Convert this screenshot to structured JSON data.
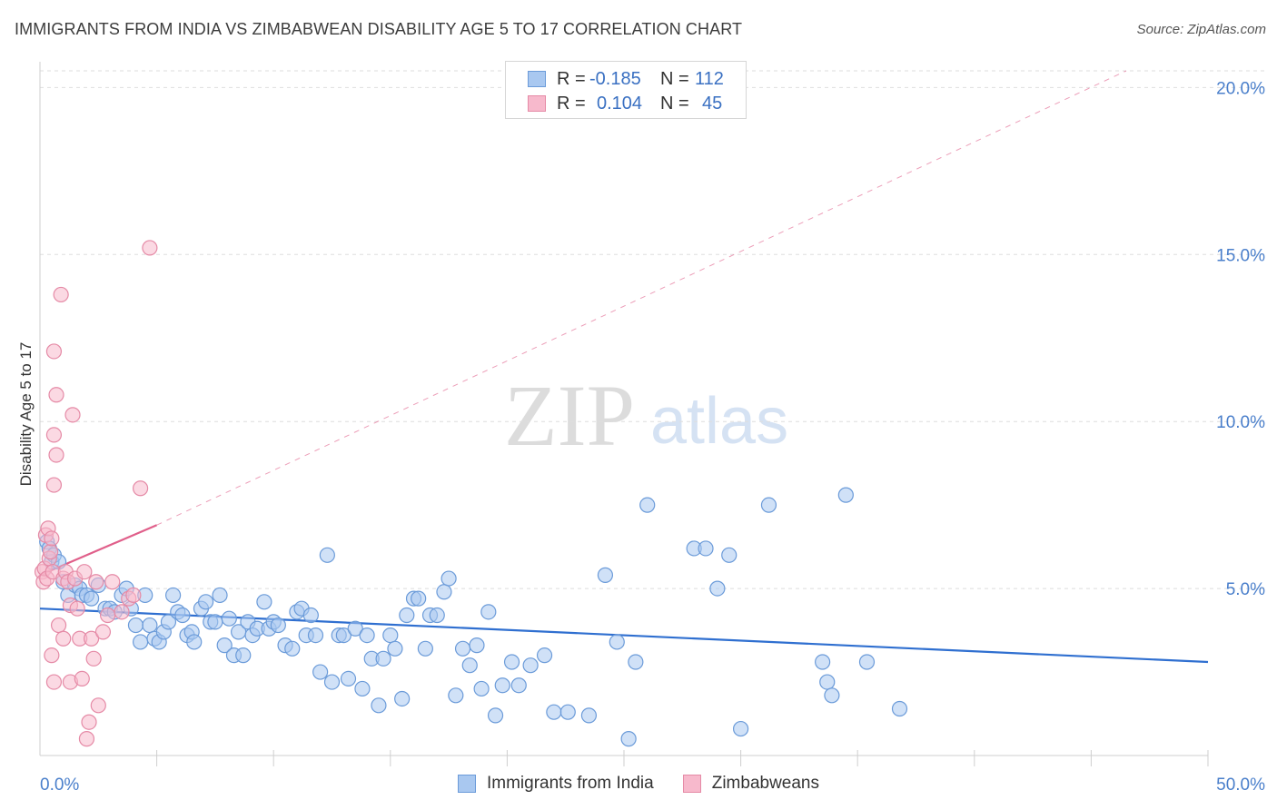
{
  "header": {
    "title": "IMMIGRANTS FROM INDIA VS ZIMBABWEAN DISABILITY AGE 5 TO 17 CORRELATION CHART",
    "source_label": "Source:",
    "source_value": "ZipAtlas.com"
  },
  "watermark": {
    "zip": "ZIP",
    "atlas": "atlas"
  },
  "legend": {
    "r_label": "R =",
    "n_label": "N =",
    "series": [
      {
        "name": "Immigrants from India",
        "r": "-0.185",
        "n": "112",
        "fill": "#a9c8f0",
        "stroke": "#6b9bd9"
      },
      {
        "name": "Zimbabweans",
        "r": "0.104",
        "n": "45",
        "fill": "#f7b9cc",
        "stroke": "#e58aa6"
      }
    ]
  },
  "chart_data": {
    "type": "scatter",
    "title": "IMMIGRANTS FROM INDIA VS ZIMBABWEAN DISABILITY AGE 5 TO 17 CORRELATION CHART",
    "xlabel": "",
    "ylabel": "Disability Age 5 to 17",
    "xlim": [
      0,
      50
    ],
    "ylim": [
      0,
      20.5
    ],
    "x_tick_labels": [
      "0.0%",
      "50.0%"
    ],
    "y_ticks": [
      {
        "value": 5,
        "label": "5.0%"
      },
      {
        "value": 10,
        "label": "10.0%"
      },
      {
        "value": 15,
        "label": "15.0%"
      },
      {
        "value": 20,
        "label": "20.0%"
      }
    ],
    "x_minor_ticks": [
      0,
      5,
      10,
      15,
      20,
      25,
      30,
      35,
      40,
      45,
      50
    ],
    "grid": "dashed horizontal",
    "series": [
      {
        "name": "Immigrants from India",
        "color": "#6b9bd9",
        "fill": "#a9c8f0",
        "trend": {
          "x0": 0,
          "y0": 4.4,
          "x1": 50,
          "y1": 2.8,
          "style": "solid",
          "color": "#2f6fd0"
        },
        "points": [
          [
            0.3,
            6.4
          ],
          [
            0.4,
            6.2
          ],
          [
            0.5,
            5.8
          ],
          [
            0.6,
            6.0
          ],
          [
            0.8,
            5.8
          ],
          [
            1.0,
            5.2
          ],
          [
            1.2,
            4.8
          ],
          [
            1.5,
            5.1
          ],
          [
            1.7,
            5.0
          ],
          [
            1.8,
            4.8
          ],
          [
            2.0,
            4.8
          ],
          [
            2.2,
            4.7
          ],
          [
            2.5,
            5.1
          ],
          [
            2.8,
            4.4
          ],
          [
            3.0,
            4.4
          ],
          [
            3.2,
            4.3
          ],
          [
            3.5,
            4.8
          ],
          [
            3.7,
            5.0
          ],
          [
            3.9,
            4.4
          ],
          [
            4.1,
            3.9
          ],
          [
            4.3,
            3.4
          ],
          [
            4.5,
            4.8
          ],
          [
            4.7,
            3.9
          ],
          [
            4.9,
            3.5
          ],
          [
            5.1,
            3.4
          ],
          [
            5.3,
            3.7
          ],
          [
            5.5,
            4.0
          ],
          [
            5.7,
            4.8
          ],
          [
            5.9,
            4.3
          ],
          [
            6.1,
            4.2
          ],
          [
            6.3,
            3.6
          ],
          [
            6.5,
            3.7
          ],
          [
            6.6,
            3.4
          ],
          [
            6.9,
            4.4
          ],
          [
            7.1,
            4.6
          ],
          [
            7.3,
            4.0
          ],
          [
            7.5,
            4.0
          ],
          [
            7.7,
            4.8
          ],
          [
            7.9,
            3.3
          ],
          [
            8.1,
            4.1
          ],
          [
            8.3,
            3.0
          ],
          [
            8.5,
            3.7
          ],
          [
            8.7,
            3.0
          ],
          [
            8.9,
            4.0
          ],
          [
            9.1,
            3.6
          ],
          [
            9.3,
            3.8
          ],
          [
            9.6,
            4.6
          ],
          [
            9.8,
            3.8
          ],
          [
            10.0,
            4.0
          ],
          [
            10.2,
            3.9
          ],
          [
            10.5,
            3.3
          ],
          [
            10.8,
            3.2
          ],
          [
            11.0,
            4.3
          ],
          [
            11.2,
            4.4
          ],
          [
            11.4,
            3.6
          ],
          [
            11.6,
            4.2
          ],
          [
            11.8,
            3.6
          ],
          [
            12.0,
            2.5
          ],
          [
            12.3,
            6.0
          ],
          [
            12.5,
            2.2
          ],
          [
            12.8,
            3.6
          ],
          [
            13.0,
            3.6
          ],
          [
            13.2,
            2.3
          ],
          [
            13.5,
            3.8
          ],
          [
            13.8,
            2.0
          ],
          [
            14.0,
            3.6
          ],
          [
            14.2,
            2.9
          ],
          [
            14.5,
            1.5
          ],
          [
            14.7,
            2.9
          ],
          [
            15.0,
            3.6
          ],
          [
            15.2,
            3.2
          ],
          [
            15.5,
            1.7
          ],
          [
            15.7,
            4.2
          ],
          [
            16.0,
            4.7
          ],
          [
            16.2,
            4.7
          ],
          [
            16.5,
            3.2
          ],
          [
            16.7,
            4.2
          ],
          [
            17.0,
            4.2
          ],
          [
            17.3,
            4.9
          ],
          [
            17.5,
            5.3
          ],
          [
            17.8,
            1.8
          ],
          [
            18.1,
            3.2
          ],
          [
            18.4,
            2.7
          ],
          [
            18.7,
            3.3
          ],
          [
            18.9,
            2.0
          ],
          [
            19.2,
            4.3
          ],
          [
            19.5,
            1.2
          ],
          [
            19.8,
            2.1
          ],
          [
            20.2,
            2.8
          ],
          [
            20.5,
            2.1
          ],
          [
            21.0,
            2.7
          ],
          [
            21.6,
            3.0
          ],
          [
            22.0,
            1.3
          ],
          [
            22.6,
            1.3
          ],
          [
            23.5,
            1.2
          ],
          [
            24.2,
            5.4
          ],
          [
            24.7,
            3.4
          ],
          [
            25.2,
            0.5
          ],
          [
            25.5,
            2.8
          ],
          [
            26.0,
            7.5
          ],
          [
            28.0,
            6.2
          ],
          [
            28.5,
            6.2
          ],
          [
            29.0,
            5.0
          ],
          [
            29.5,
            6.0
          ],
          [
            30.0,
            0.8
          ],
          [
            31.2,
            7.5
          ],
          [
            33.5,
            2.8
          ],
          [
            33.7,
            2.2
          ],
          [
            33.9,
            1.8
          ],
          [
            34.5,
            7.8
          ],
          [
            35.4,
            2.8
          ],
          [
            36.8,
            1.4
          ]
        ]
      },
      {
        "name": "Zimbabweans",
        "color": "#e58aa6",
        "fill": "#f7b9cc",
        "trend": {
          "x0": 0,
          "y0": 5.4,
          "x1": 5,
          "y1": 6.9,
          "style": "solid",
          "color": "#e05f8a",
          "extended": {
            "x1": 46.5,
            "y1": 20.5,
            "style": "dashed"
          }
        },
        "points": [
          [
            0.1,
            5.5
          ],
          [
            0.15,
            5.2
          ],
          [
            0.2,
            5.6
          ],
          [
            0.25,
            6.6
          ],
          [
            0.3,
            5.3
          ],
          [
            0.35,
            6.8
          ],
          [
            0.4,
            5.9
          ],
          [
            0.45,
            6.1
          ],
          [
            0.5,
            6.5
          ],
          [
            0.5,
            3.0
          ],
          [
            0.55,
            5.5
          ],
          [
            0.6,
            2.2
          ],
          [
            0.6,
            12.1
          ],
          [
            0.6,
            8.1
          ],
          [
            0.6,
            9.6
          ],
          [
            0.7,
            10.8
          ],
          [
            0.7,
            9.0
          ],
          [
            0.8,
            3.9
          ],
          [
            0.9,
            13.8
          ],
          [
            1.0,
            3.5
          ],
          [
            1.0,
            5.3
          ],
          [
            1.1,
            5.5
          ],
          [
            1.2,
            5.2
          ],
          [
            1.3,
            4.5
          ],
          [
            1.3,
            2.2
          ],
          [
            1.4,
            10.2
          ],
          [
            1.5,
            5.3
          ],
          [
            1.6,
            4.4
          ],
          [
            1.7,
            3.5
          ],
          [
            1.8,
            2.3
          ],
          [
            1.9,
            5.5
          ],
          [
            2.0,
            0.5
          ],
          [
            2.1,
            1.0
          ],
          [
            2.2,
            3.5
          ],
          [
            2.3,
            2.9
          ],
          [
            2.4,
            5.2
          ],
          [
            2.5,
            1.5
          ],
          [
            2.7,
            3.7
          ],
          [
            2.9,
            4.2
          ],
          [
            3.1,
            5.2
          ],
          [
            3.5,
            4.3
          ],
          [
            3.8,
            4.7
          ],
          [
            4.0,
            4.8
          ],
          [
            4.3,
            8.0
          ],
          [
            4.7,
            15.2
          ]
        ]
      }
    ]
  }
}
